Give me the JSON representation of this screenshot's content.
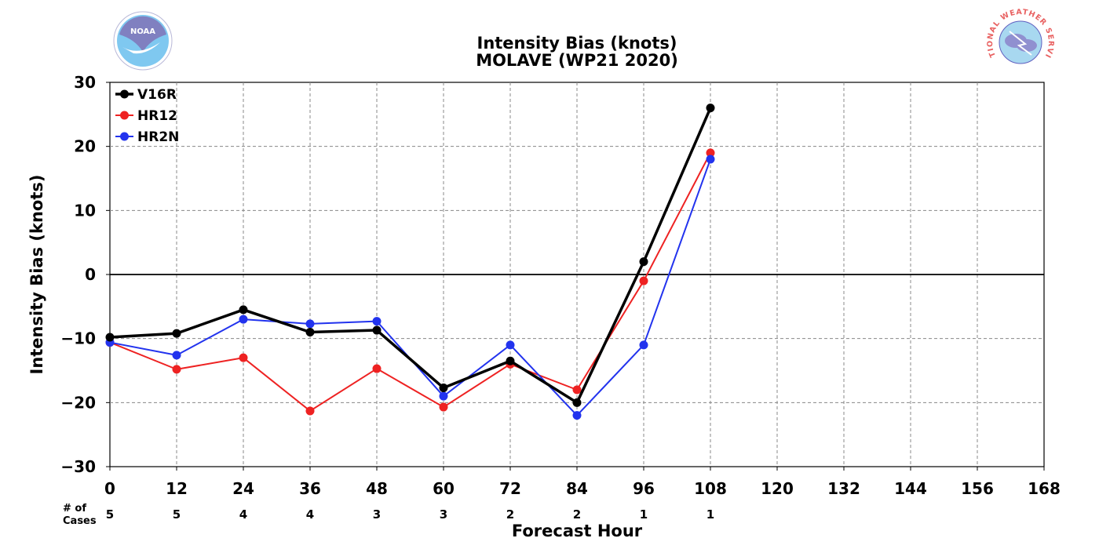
{
  "chart_data": {
    "type": "line",
    "title": "Intensity Bias (knots)",
    "subtitle": "MOLAVE (WP21 2020)",
    "xlabel": "Forecast Hour",
    "ylabel": "Intensity Bias (knots)",
    "xlim": [
      0,
      168
    ],
    "ylim": [
      -30,
      30
    ],
    "xticks": [
      0,
      12,
      24,
      36,
      48,
      60,
      72,
      84,
      96,
      108,
      120,
      132,
      144,
      156,
      168
    ],
    "yticks": [
      -30,
      -20,
      -10,
      0,
      10,
      20,
      30
    ],
    "ytick_labels": [
      "−30",
      "−20",
      "−10",
      "0",
      "10",
      "20",
      "30"
    ],
    "grid": true,
    "legend_position": "top-left",
    "cases_label": "# of\nCases",
    "cases": [
      {
        "x": 0,
        "label": "5"
      },
      {
        "x": 12,
        "label": "5"
      },
      {
        "x": 24,
        "label": "4"
      },
      {
        "x": 36,
        "label": "4"
      },
      {
        "x": 48,
        "label": "3"
      },
      {
        "x": 60,
        "label": "3"
      },
      {
        "x": 72,
        "label": "2"
      },
      {
        "x": 84,
        "label": "2"
      },
      {
        "x": 96,
        "label": "1"
      },
      {
        "x": 108,
        "label": "1"
      }
    ],
    "x": [
      0,
      12,
      24,
      36,
      48,
      60,
      72,
      84,
      96,
      108
    ],
    "series": [
      {
        "name": "V16R",
        "color": "#000000",
        "values": [
          -9.8,
          -9.2,
          -5.5,
          -9.0,
          -8.7,
          -17.7,
          -13.5,
          -20.0,
          2.0,
          26.0
        ]
      },
      {
        "name": "HR12",
        "color": "#ee2222",
        "values": [
          -10.6,
          -14.8,
          -13.0,
          -21.3,
          -14.7,
          -20.7,
          -14.0,
          -18.0,
          -1.0,
          19.0
        ]
      },
      {
        "name": "HR2N",
        "color": "#2233ee",
        "values": [
          -10.6,
          -12.6,
          -7.0,
          -7.7,
          -7.3,
          -19.0,
          -11.0,
          -22.0,
          -11.0,
          18.0
        ]
      }
    ]
  },
  "logos": {
    "left": {
      "name": "noaa-logo",
      "text": "NOAA",
      "color": "#7fc8f0"
    },
    "right": {
      "name": "nws-logo",
      "text": "NATIONAL WEATHER SERVICE",
      "color": "#e86060"
    }
  }
}
